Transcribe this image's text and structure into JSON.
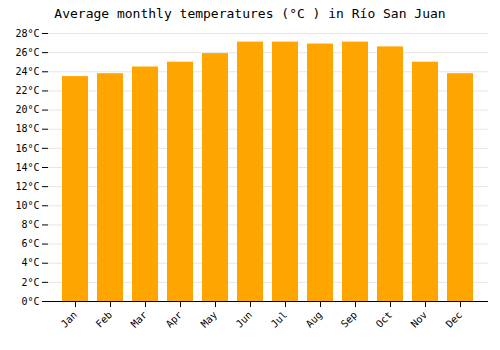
{
  "chart_data": {
    "type": "bar",
    "title": "Average monthly temperatures (°C ) in Río San Juan",
    "categories": [
      "Jan",
      "Feb",
      "Mar",
      "Apr",
      "May",
      "Jun",
      "Jul",
      "Aug",
      "Sep",
      "Oct",
      "Nov",
      "Dec"
    ],
    "values": [
      23.5,
      23.8,
      24.5,
      25.0,
      25.9,
      27.1,
      27.1,
      26.9,
      27.1,
      26.6,
      25.0,
      23.8
    ],
    "color": "#FFA500",
    "ylim": [
      0,
      28
    ],
    "yticks": [
      {
        "value": 0,
        "label": "0°C"
      },
      {
        "value": 2,
        "label": "2°C"
      },
      {
        "value": 4,
        "label": "4°C"
      },
      {
        "value": 6,
        "label": "6°C"
      },
      {
        "value": 8,
        "label": "8°C"
      },
      {
        "value": 10,
        "label": "10°C"
      },
      {
        "value": 12,
        "label": "12°C"
      },
      {
        "value": 14,
        "label": "14°C"
      },
      {
        "value": 16,
        "label": "16°C"
      },
      {
        "value": 18,
        "label": "18°C"
      },
      {
        "value": 20,
        "label": "20°C"
      },
      {
        "value": 22,
        "label": "22°C"
      },
      {
        "value": 24,
        "label": "24°C"
      },
      {
        "value": 26,
        "label": "26°C"
      },
      {
        "value": 28,
        "label": "28°C"
      }
    ],
    "grid": true
  }
}
